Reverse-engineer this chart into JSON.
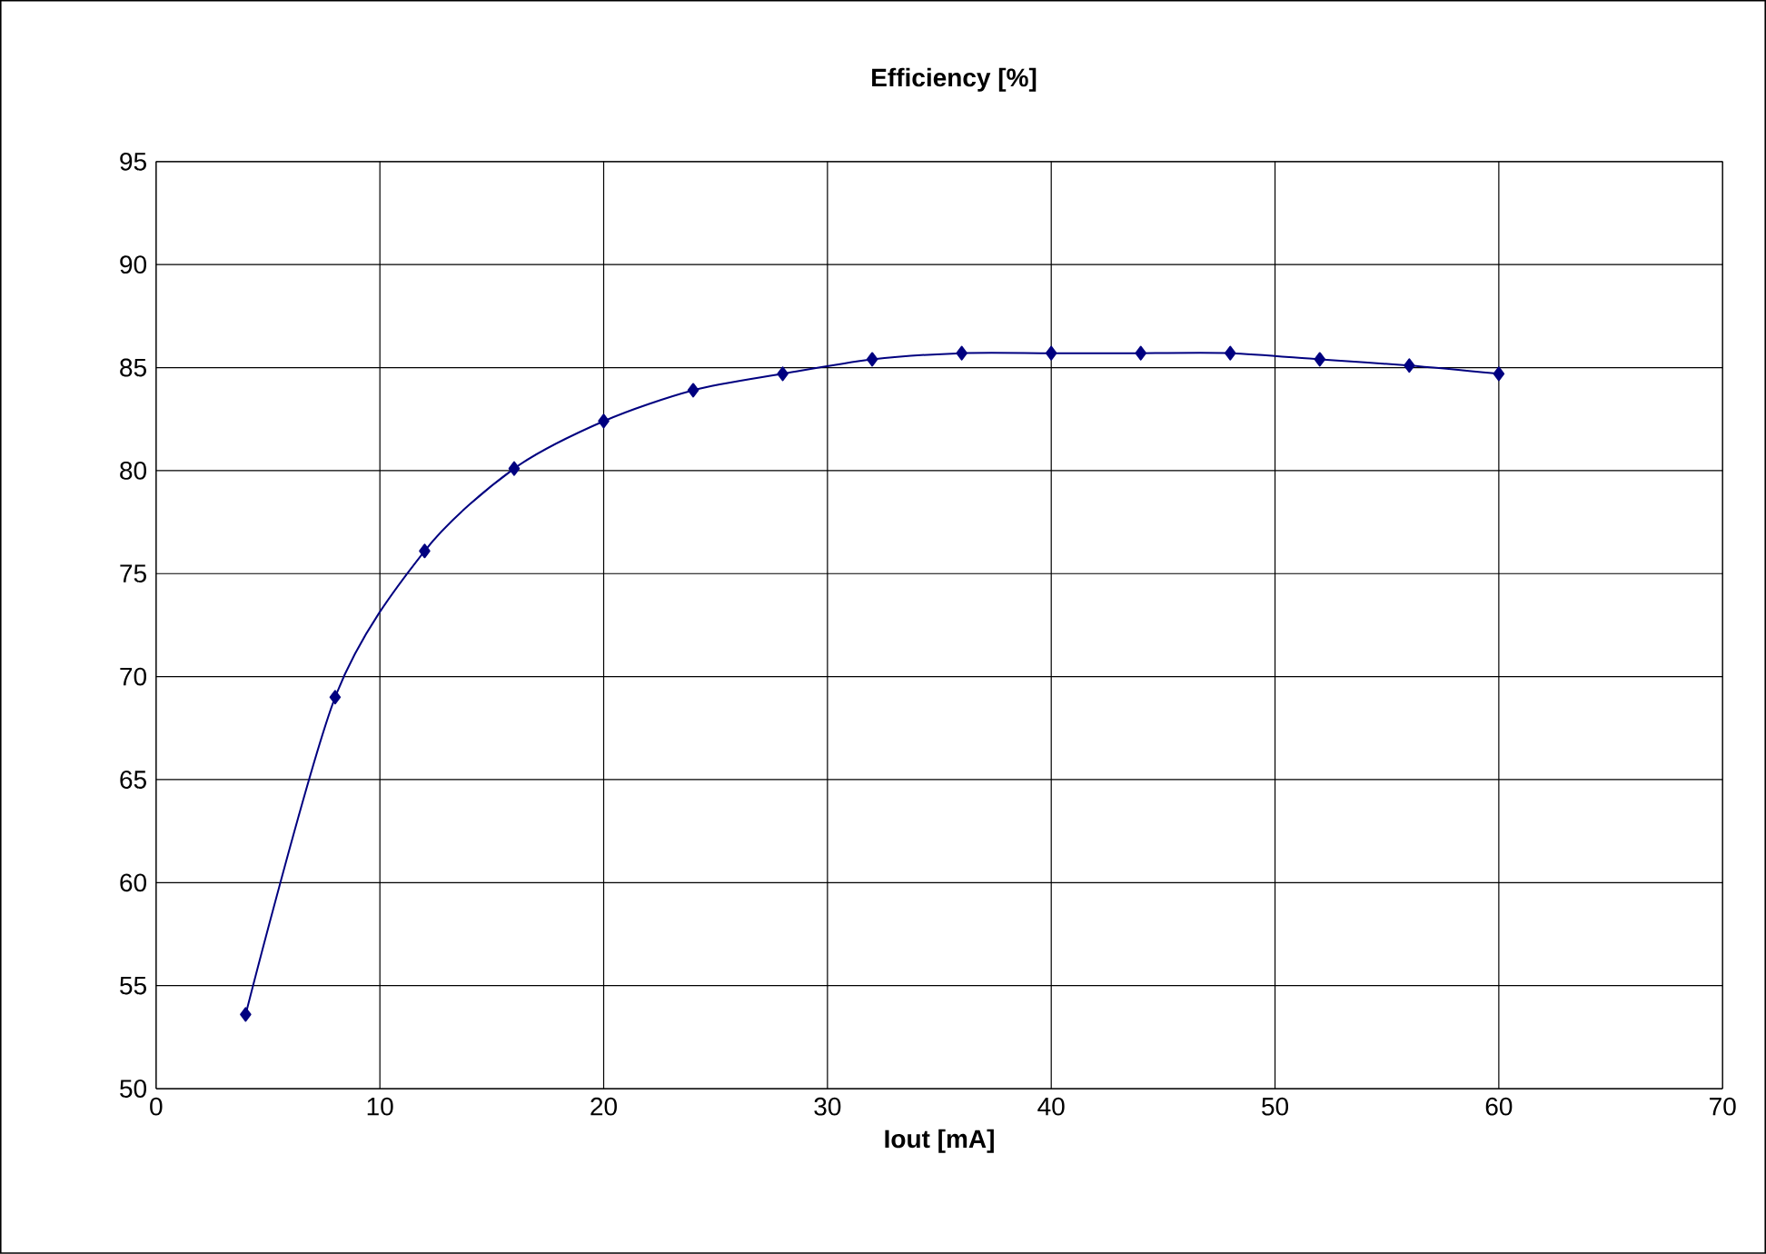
{
  "chart_data": {
    "type": "line",
    "title": "Efficiency [%]",
    "xlabel": "Iout [mA]",
    "x": [
      4,
      8,
      12,
      16,
      20,
      24,
      28,
      32,
      36,
      40,
      44,
      48,
      52,
      56,
      60
    ],
    "series": [
      {
        "color": "#000080",
        "values": [
          53.6,
          69.0,
          76.1,
          80.1,
          82.4,
          83.9,
          84.7,
          85.4,
          85.7,
          85.7,
          85.7,
          85.7,
          85.4,
          85.1,
          84.7
        ]
      }
    ],
    "xlim": [
      0,
      70
    ],
    "xticks": [
      0,
      10,
      20,
      30,
      40,
      50,
      60,
      70
    ],
    "ylim": [
      50,
      95
    ],
    "yticks": [
      50,
      55,
      60,
      65,
      70,
      75,
      80,
      85,
      90,
      95
    ],
    "grid": true,
    "marker": "diamond",
    "line_style": "solid"
  }
}
